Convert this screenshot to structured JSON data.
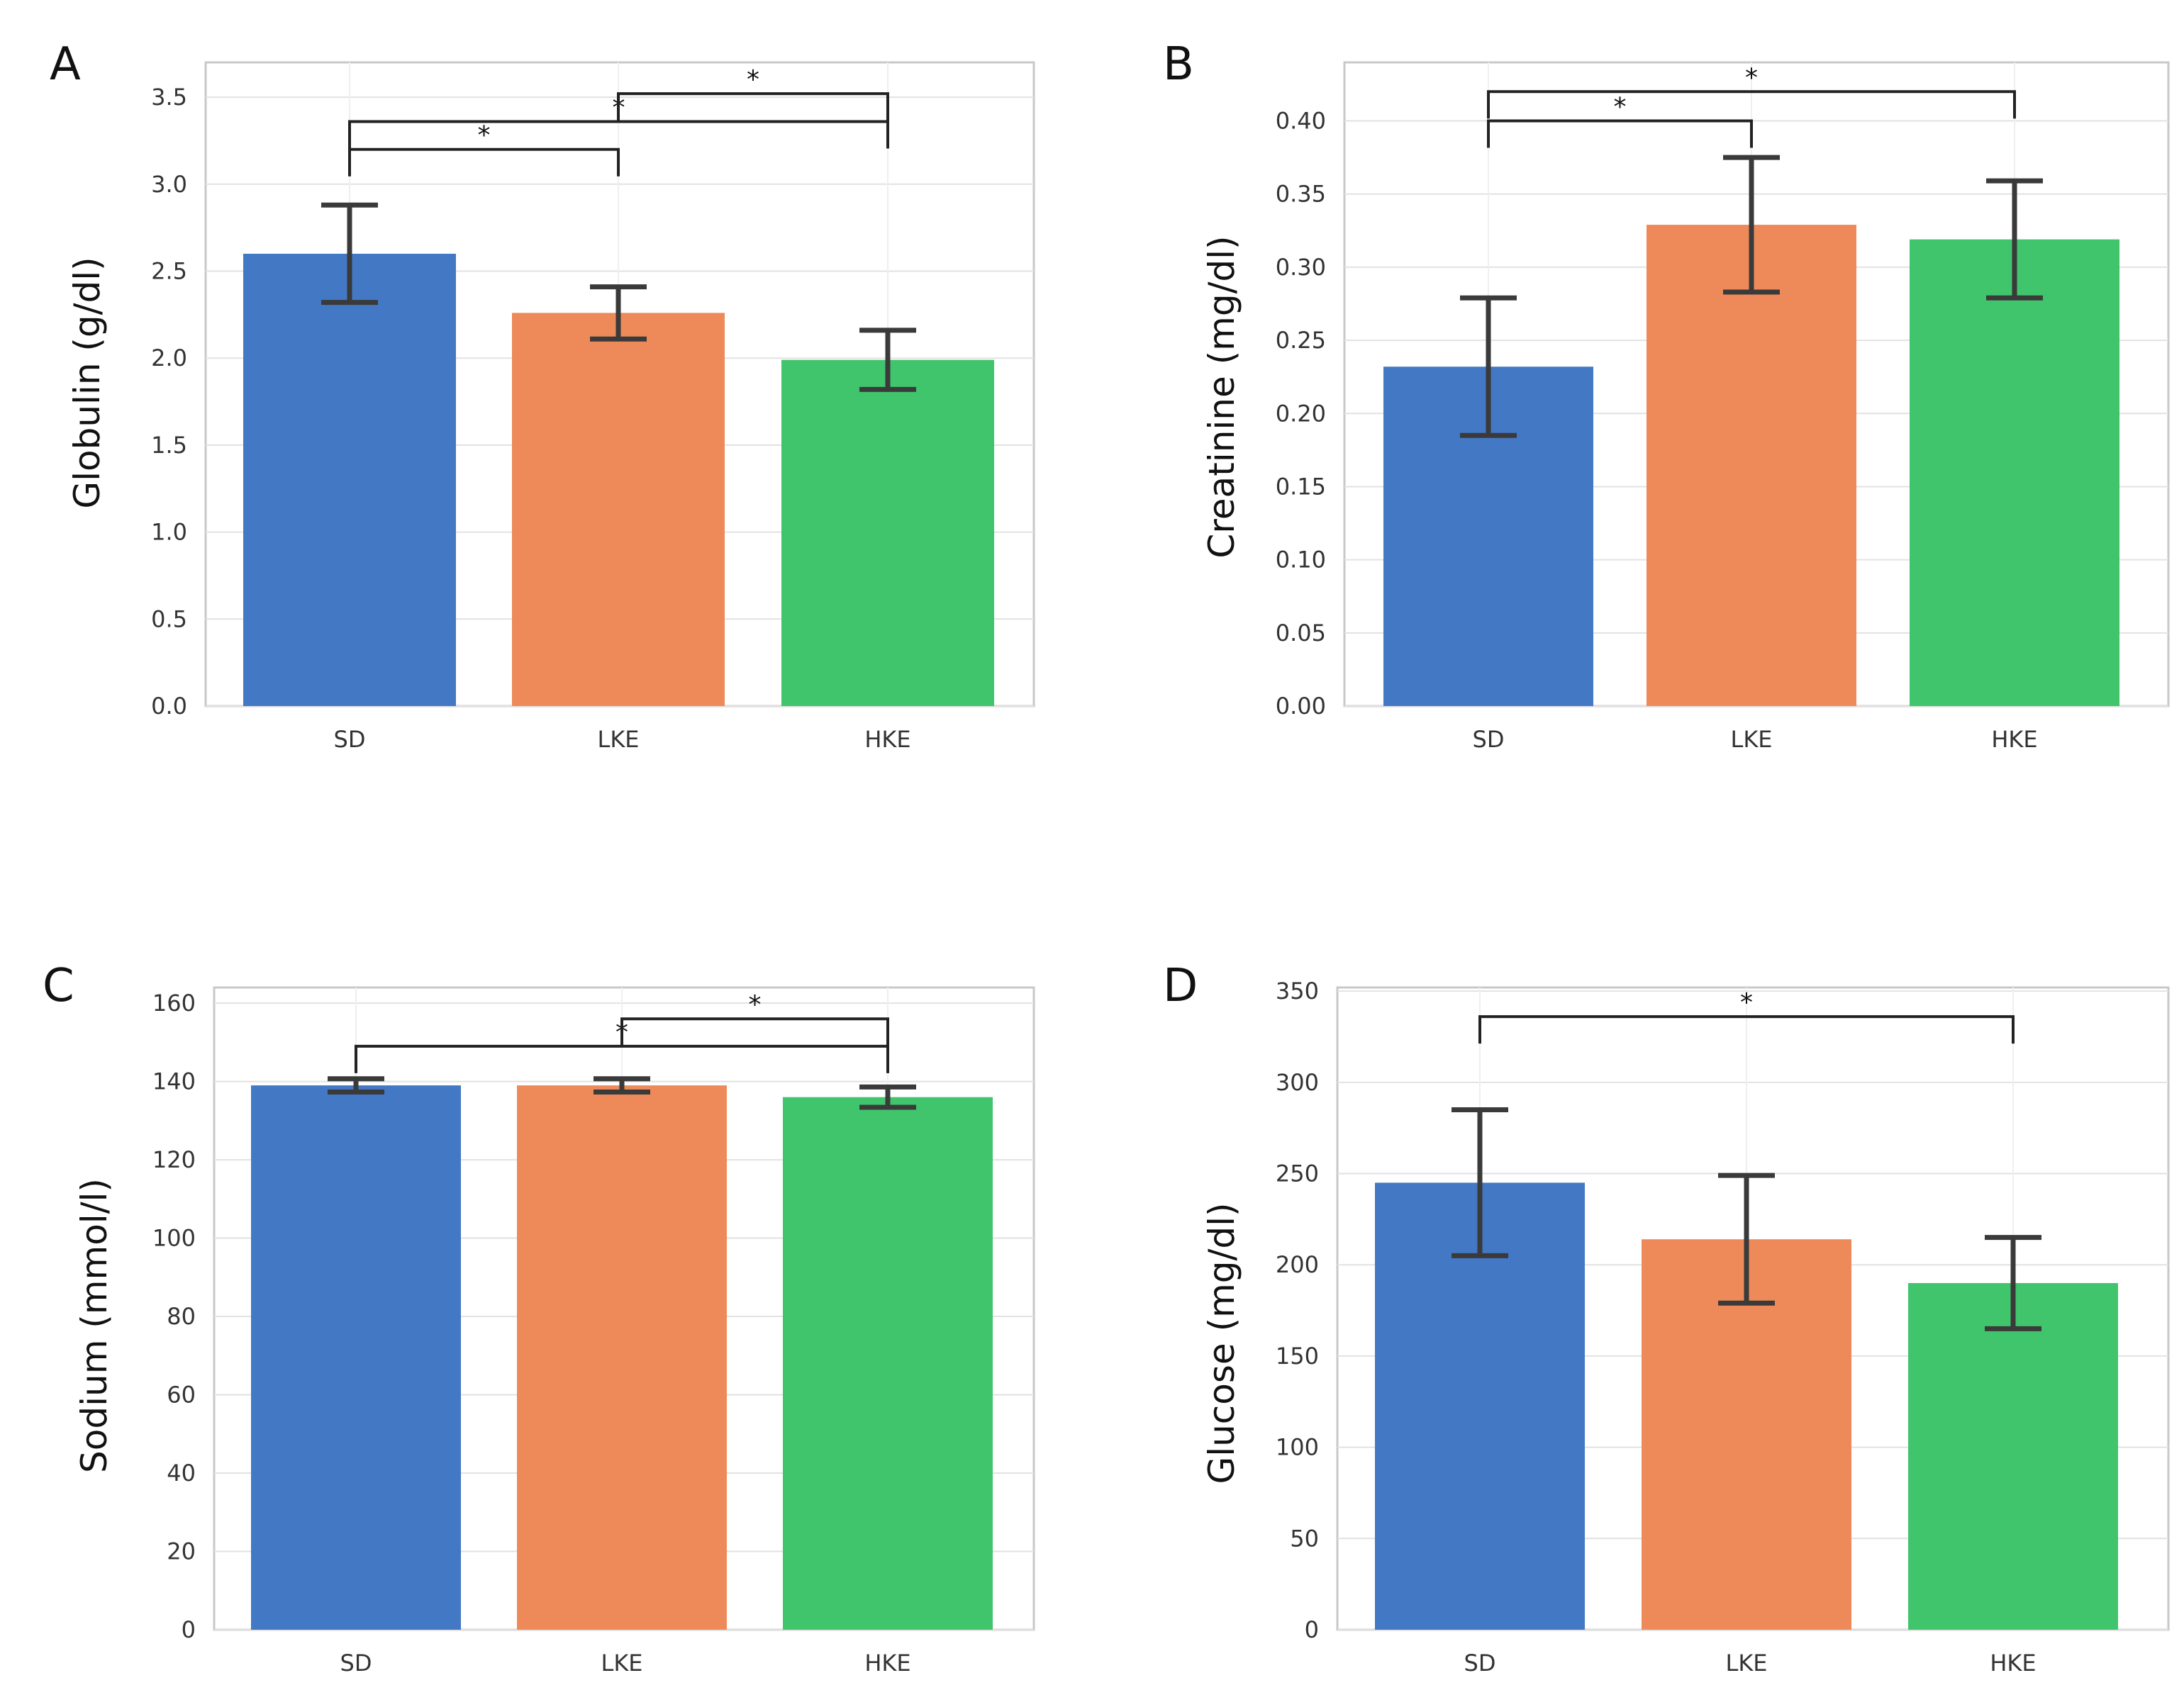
{
  "figure": {
    "colors": {
      "SD": "#4378c4",
      "LKE": "#ee8a5a",
      "HKE": "#40c46c",
      "error_bar": "#3a3a3a",
      "bracket": "#222222",
      "grid": "#e2e2e2",
      "frame": "#c8c8c8"
    }
  },
  "chart_data": [
    {
      "type": "bar",
      "panel": "A",
      "ylabel": "Globulin (g/dl)",
      "categories": [
        "SD",
        "LKE",
        "HKE"
      ],
      "values": [
        2.6,
        2.26,
        1.99
      ],
      "errors": [
        0.28,
        0.15,
        0.17
      ],
      "ylim": [
        0,
        3.7
      ],
      "yticks": [
        0.0,
        0.5,
        1.0,
        1.5,
        2.0,
        2.5,
        3.0,
        3.5
      ],
      "tick_decimals": 1,
      "significance": [
        {
          "from": 0,
          "to": 1,
          "y": 3.2,
          "label": "*"
        },
        {
          "from": 0,
          "to": 2,
          "y": 3.36,
          "label": "*"
        },
        {
          "from": 1,
          "to": 2,
          "y": 3.52,
          "label": "*"
        }
      ]
    },
    {
      "type": "bar",
      "panel": "B",
      "ylabel": "Creatinine (mg/dl)",
      "categories": [
        "SD",
        "LKE",
        "HKE"
      ],
      "values": [
        0.232,
        0.329,
        0.319
      ],
      "errors": [
        0.047,
        0.046,
        0.04
      ],
      "ylim": [
        0,
        0.44
      ],
      "yticks": [
        0.0,
        0.05,
        0.1,
        0.15,
        0.2,
        0.25,
        0.3,
        0.35,
        0.4
      ],
      "tick_decimals": 2,
      "significance": [
        {
          "from": 0,
          "to": 1,
          "y": 0.4,
          "label": "*"
        },
        {
          "from": 0,
          "to": 2,
          "y": 0.42,
          "label": "*"
        }
      ]
    },
    {
      "type": "bar",
      "panel": "C",
      "ylabel": "Sodium (mmol/l)",
      "categories": [
        "SD",
        "LKE",
        "HKE"
      ],
      "values": [
        139,
        139,
        136
      ],
      "errors": [
        1.7,
        1.7,
        2.6
      ],
      "ylim": [
        0,
        164
      ],
      "yticks": [
        0,
        20,
        40,
        60,
        80,
        100,
        120,
        140,
        160
      ],
      "tick_decimals": 0,
      "significance": [
        {
          "from": 0,
          "to": 2,
          "y": 149,
          "label": "*"
        },
        {
          "from": 1,
          "to": 2,
          "y": 156,
          "label": "*"
        }
      ]
    },
    {
      "type": "bar",
      "panel": "D",
      "ylabel": "Glucose (mg/dl)",
      "categories": [
        "SD",
        "LKE",
        "HKE"
      ],
      "values": [
        245,
        214,
        190
      ],
      "errors": [
        40,
        35,
        25
      ],
      "ylim": [
        0,
        352
      ],
      "yticks": [
        0,
        50,
        100,
        150,
        200,
        250,
        300,
        350
      ],
      "tick_decimals": 0,
      "significance": [
        {
          "from": 0,
          "to": 2,
          "y": 336,
          "label": "*"
        }
      ]
    }
  ]
}
